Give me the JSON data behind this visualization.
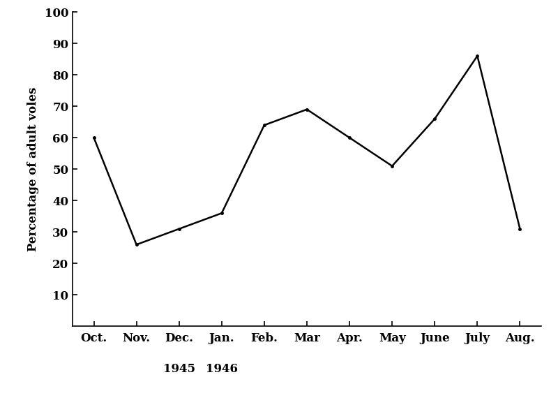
{
  "x_labels_display": [
    "Oct.",
    "Nov.",
    "Dec.",
    "Jan.",
    "Feb.",
    "Mar",
    "Apr.",
    "May",
    "June",
    "July",
    "Aug."
  ],
  "year_label_1945_idx": 2,
  "year_label_1946_idx": 3,
  "y_values": [
    60,
    26,
    31,
    36,
    64,
    69,
    60,
    51,
    66,
    86,
    31
  ],
  "ylabel": "Percentage of adult voles",
  "ylim": [
    0,
    100
  ],
  "yticks": [
    10,
    20,
    30,
    40,
    50,
    60,
    70,
    80,
    90,
    100
  ],
  "line_color": "#000000",
  "line_width": 1.8,
  "marker": ".",
  "marker_size": 5,
  "marker_color": "#000000",
  "background_color": "#ffffff",
  "tick_fontsize": 12,
  "year_fontsize": 12,
  "label_fontsize": 12
}
